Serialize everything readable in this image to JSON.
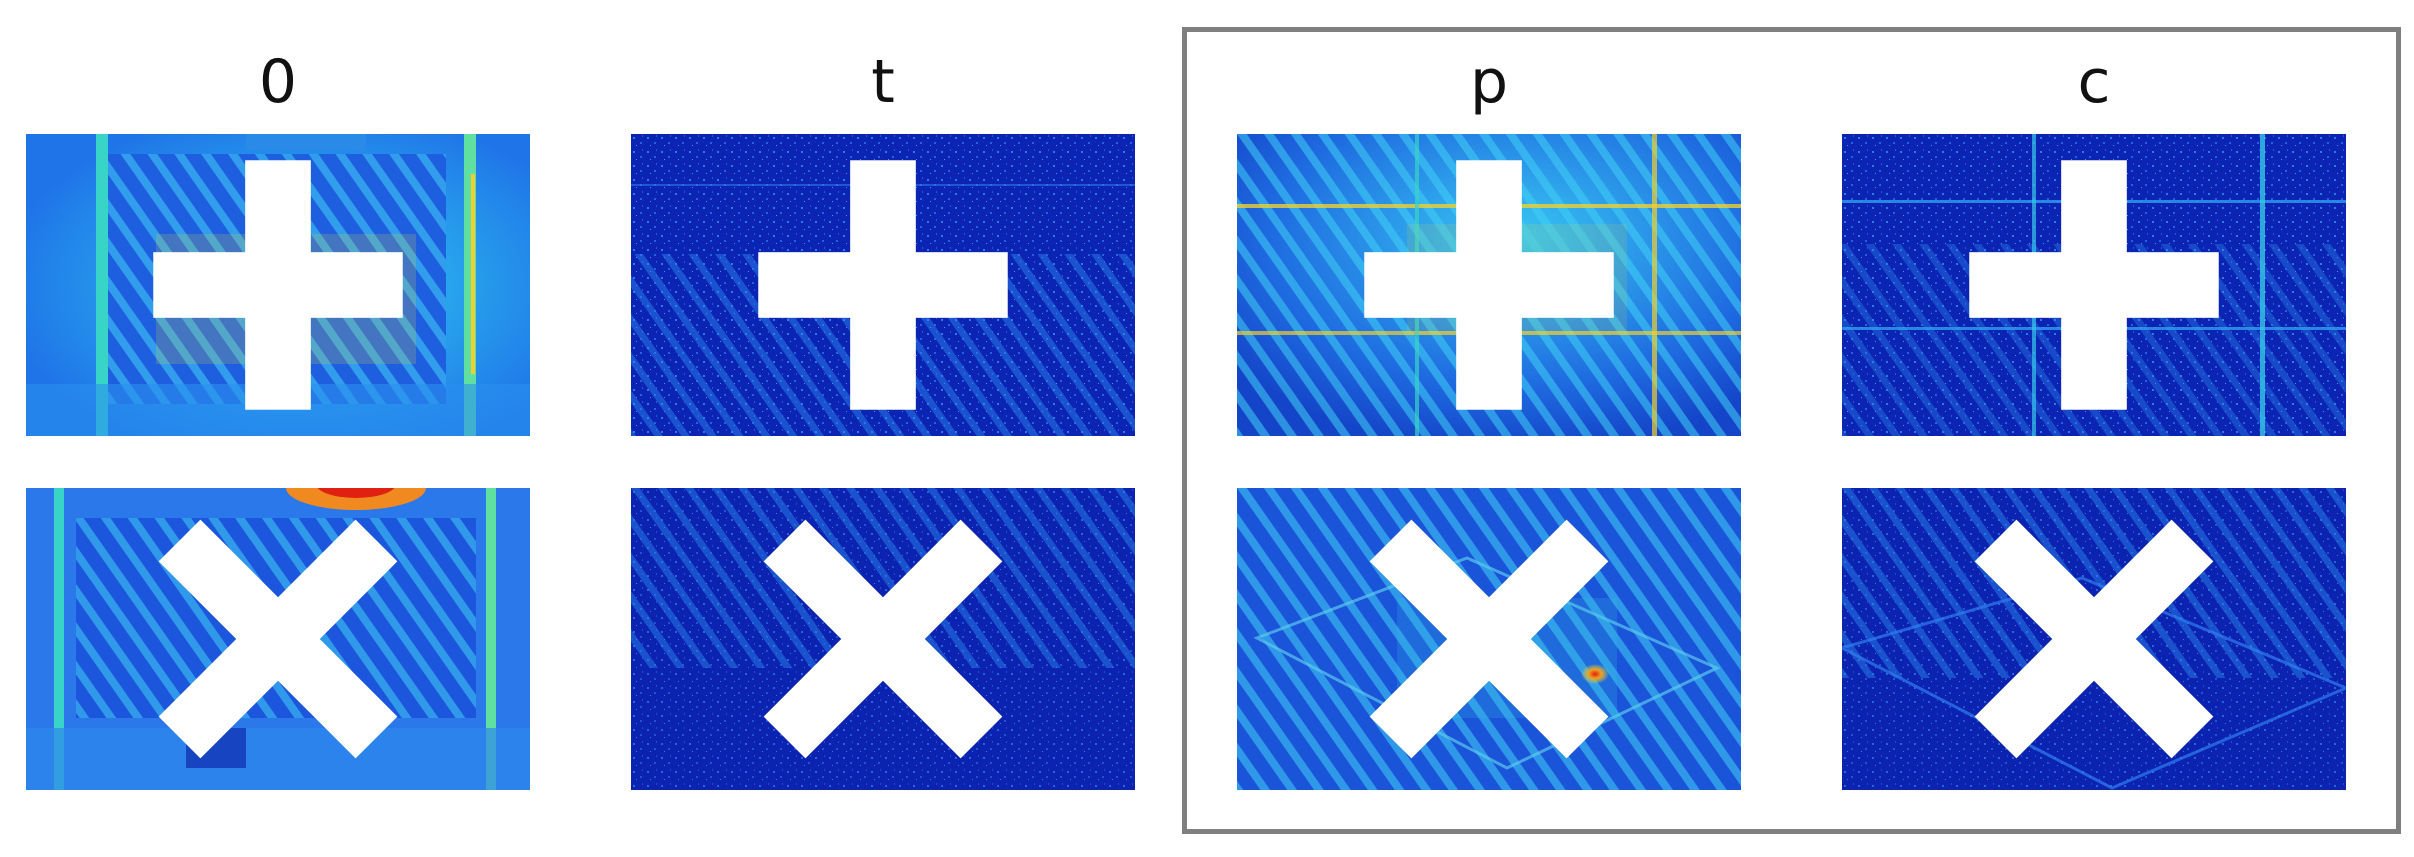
{
  "columns": [
    {
      "title": "0"
    },
    {
      "title": "t"
    },
    {
      "title": "p"
    },
    {
      "title": "c"
    }
  ],
  "rows": [
    {
      "marker": "+",
      "marker_icon": "plus-icon"
    },
    {
      "marker": "×",
      "marker_icon": "cross-icon"
    }
  ],
  "colors": {
    "deep_blue": "#0a1fb0",
    "blue": "#1a4be0",
    "cyan": "#27c8f0",
    "light_blue": "#3b8df5",
    "yellow": "#f0e030",
    "red": "#e02010",
    "frame_gray": "#7f7f7f",
    "marker_white": "#ffffff"
  }
}
